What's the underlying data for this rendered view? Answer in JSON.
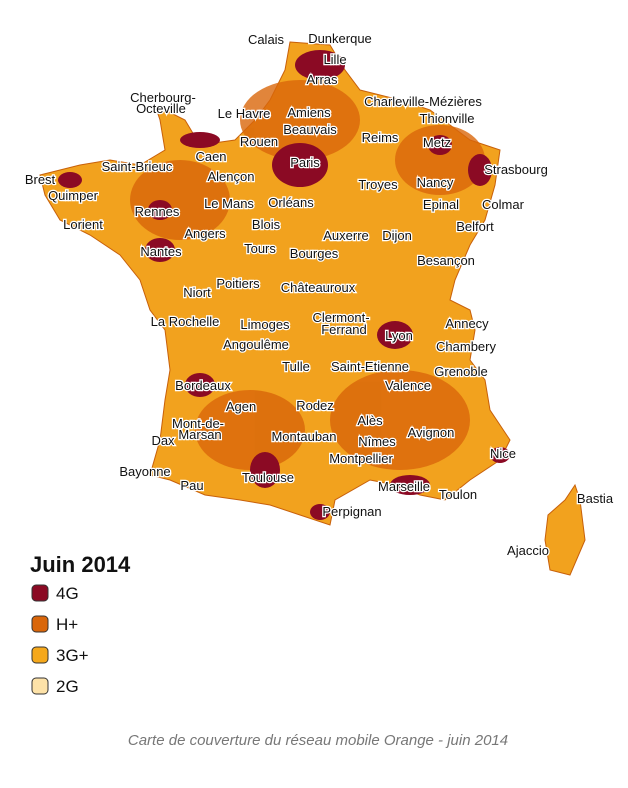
{
  "map": {
    "cities": [
      "Calais",
      "Dunkerque",
      "Lille",
      "Arras",
      "Cherbourg-",
      "Octeville",
      "Le Havre",
      "Amiens",
      "Charleville-Mézières",
      "Beauvais",
      "Thionville",
      "Reims",
      "Metz",
      "Rouen",
      "Caen",
      "Paris",
      "Saint-Brieuc",
      "Strasbourg",
      "Brest",
      "Alençon",
      "Troyes",
      "Nancy",
      "Quimper",
      "Rennes",
      "Le Mans",
      "Orléans",
      "Colmar",
      "Epinal",
      "Lorient",
      "Blois",
      "Belfort",
      "Angers",
      "Auxerre",
      "Dijon",
      "Tours",
      "Nantes",
      "Bourges",
      "Besançon",
      "Niort",
      "Poitiers",
      "Châteauroux",
      "La Rochelle",
      "Limoges",
      "Clermont-",
      "Ferrand",
      "Annecy",
      "Lyon",
      "Angoulême",
      "Chambery",
      "Tulle",
      "Saint-Etienne",
      "Grenoble",
      "Valence",
      "Bordeaux",
      "Agen",
      "Rodez",
      "Mont-de-",
      "Marsan",
      "Alès",
      "Avignon",
      "Dax",
      "Montauban",
      "Nîmes",
      "Nice",
      "Montpellier",
      "Bayonne",
      "Toulouse",
      "Pau",
      "Marseille",
      "Toulon",
      "Bastia",
      "Perpignan",
      "Ajaccio"
    ]
  },
  "legend": {
    "title": "Juin 2014",
    "items": [
      {
        "label": "4G",
        "color": "#8b0a24"
      },
      {
        "label": "H+",
        "color": "#d9660a"
      },
      {
        "label": "3G+",
        "color": "#f5a81c"
      },
      {
        "label": "2G",
        "color": "#fde2a8"
      }
    ]
  },
  "caption": "Carte de couverture du réseau mobile Orange - juin 2014"
}
